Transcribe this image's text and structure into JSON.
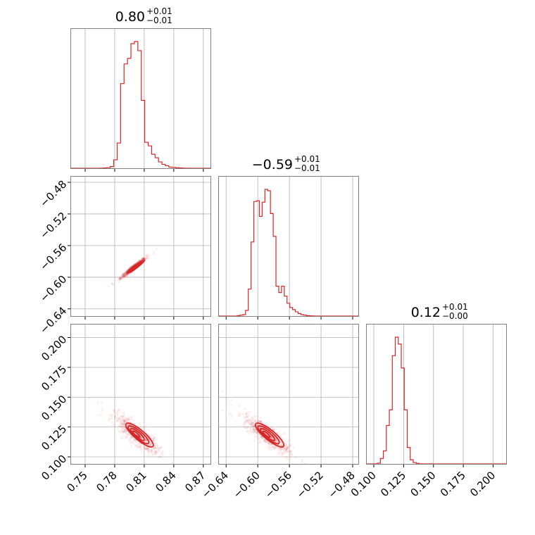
{
  "colors": {
    "series": "#d62728",
    "grid": "#b0b0b0",
    "frame": "#808080"
  },
  "chart_data": {
    "type": "corner",
    "grid": true,
    "parameters": [
      {
        "title": {
          "median": "0.80",
          "plus": "+0.01",
          "minus": "−0.01"
        },
        "range": [
          0.735,
          0.878
        ],
        "ticks": [
          0.75,
          0.78,
          0.81,
          0.84,
          0.87
        ],
        "tick_labels": [
          "0.75",
          "0.78",
          "0.81",
          "0.84",
          "0.87"
        ]
      },
      {
        "title": {
          "median": "−0.59",
          "plus": "+0.01",
          "minus": "−0.01"
        },
        "range": [
          -0.65,
          -0.472
        ],
        "ticks": [
          -0.64,
          -0.6,
          -0.56,
          -0.52,
          -0.48
        ],
        "tick_labels": [
          "−0.64",
          "−0.60",
          "−0.56",
          "−0.52",
          "−0.48"
        ]
      },
      {
        "title": {
          "median": "0.12",
          "plus": "+0.01",
          "minus": "−0.00"
        },
        "range": [
          0.0935,
          0.2115
        ],
        "ticks": [
          0.1,
          0.125,
          0.15,
          0.175,
          0.2
        ],
        "tick_labels": [
          "0.100",
          "0.125",
          "0.150",
          "0.175",
          "0.200"
        ]
      }
    ],
    "histograms": [
      {
        "param": 0,
        "bin_edges": [
          0.765,
          0.7685,
          0.772,
          0.7755,
          0.779,
          0.7825,
          0.786,
          0.7895,
          0.793,
          0.7965,
          0.8,
          0.8035,
          0.807,
          0.8105,
          0.814,
          0.8175,
          0.821,
          0.8245,
          0.828,
          0.8315,
          0.835,
          0.8385,
          0.842,
          0.8455,
          0.849,
          0.8525,
          0.856
        ],
        "counts": [
          1,
          2,
          4,
          12,
          60,
          180,
          605,
          745,
          785,
          890,
          905,
          840,
          485,
          185,
          160,
          100,
          75,
          45,
          28,
          18,
          8,
          6,
          3,
          2,
          1,
          0
        ]
      },
      {
        "param": 1,
        "bin_edges": [
          -0.626,
          -0.6225,
          -0.619,
          -0.6155,
          -0.612,
          -0.6085,
          -0.605,
          -0.6015,
          -0.598,
          -0.5945,
          -0.591,
          -0.5875,
          -0.584,
          -0.5805,
          -0.577,
          -0.5735,
          -0.57,
          -0.5665,
          -0.563,
          -0.5595,
          -0.556,
          -0.5525,
          -0.549,
          -0.5455,
          -0.542,
          -0.5385,
          -0.535,
          -0.5315,
          -0.528
        ],
        "counts": [
          3,
          6,
          10,
          40,
          190,
          520,
          805,
          810,
          700,
          800,
          890,
          880,
          720,
          560,
          210,
          165,
          210,
          140,
          90,
          60,
          45,
          30,
          18,
          10,
          6,
          3,
          2,
          1
        ]
      },
      {
        "param": 2,
        "bin_edges": [
          0.103,
          0.1055,
          0.108,
          0.1105,
          0.113,
          0.1155,
          0.118,
          0.1205,
          0.123,
          0.1255,
          0.128,
          0.1305,
          0.133,
          0.1355,
          0.138,
          0.1405
        ],
        "counts": [
          5,
          40,
          95,
          280,
          395,
          790,
          925,
          875,
          700,
          395,
          120,
          30,
          10,
          4,
          1
        ]
      }
    ],
    "pairs": [
      {
        "x_param": 0,
        "y_param": 1,
        "mode": [
          0.799,
          -0.588
        ],
        "spread": [
          0.004,
          0.004
        ],
        "correlation": 0.97
      },
      {
        "x_param": 0,
        "y_param": 2,
        "mode": [
          0.802,
          0.119
        ],
        "spread": [
          0.007,
          0.005
        ],
        "correlation": -0.85
      },
      {
        "x_param": 1,
        "y_param": 2,
        "mode": [
          -0.589,
          0.119
        ],
        "spread": [
          0.009,
          0.005
        ],
        "correlation": -0.85
      }
    ],
    "contour_levels": [
      0.5,
      1.0,
      1.5,
      2.0
    ]
  }
}
